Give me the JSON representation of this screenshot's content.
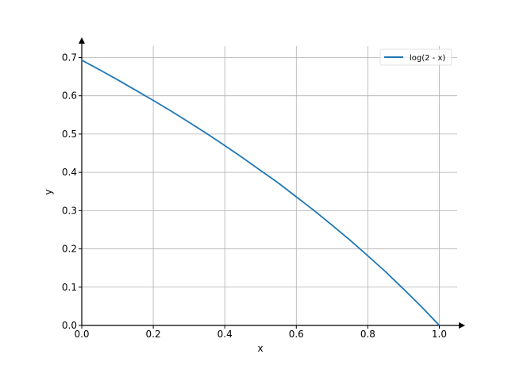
{
  "chart_data": {
    "type": "line",
    "xlabel": "x",
    "ylabel": "y",
    "xlim": [
      0.0,
      1.05
    ],
    "ylim": [
      0.0,
      0.73
    ],
    "grid": true,
    "legend_position": "top-right",
    "x_ticks": [
      0.0,
      0.2,
      0.4,
      0.6,
      0.8,
      1.0
    ],
    "x_tick_labels": [
      "0.0",
      "0.2",
      "0.4",
      "0.6",
      "0.8",
      "1.0"
    ],
    "y_ticks": [
      0.0,
      0.1,
      0.2,
      0.3,
      0.4,
      0.5,
      0.6,
      0.7
    ],
    "y_tick_labels": [
      "0.0",
      "0.1",
      "0.2",
      "0.3",
      "0.4",
      "0.5",
      "0.6",
      "0.7"
    ],
    "series": [
      {
        "name": "log(2 - x)",
        "color": "#1f77b4",
        "x": [
          0.0,
          0.05,
          0.1,
          0.15,
          0.2,
          0.25,
          0.3,
          0.35,
          0.4,
          0.45,
          0.5,
          0.55,
          0.6,
          0.65,
          0.7,
          0.75,
          0.8,
          0.85,
          0.9,
          0.95,
          1.0
        ],
        "y": [
          0.693,
          0.668,
          0.642,
          0.615,
          0.588,
          0.56,
          0.531,
          0.501,
          0.47,
          0.438,
          0.405,
          0.372,
          0.336,
          0.3,
          0.262,
          0.223,
          0.182,
          0.14,
          0.095,
          0.049,
          0.0
        ]
      }
    ]
  }
}
